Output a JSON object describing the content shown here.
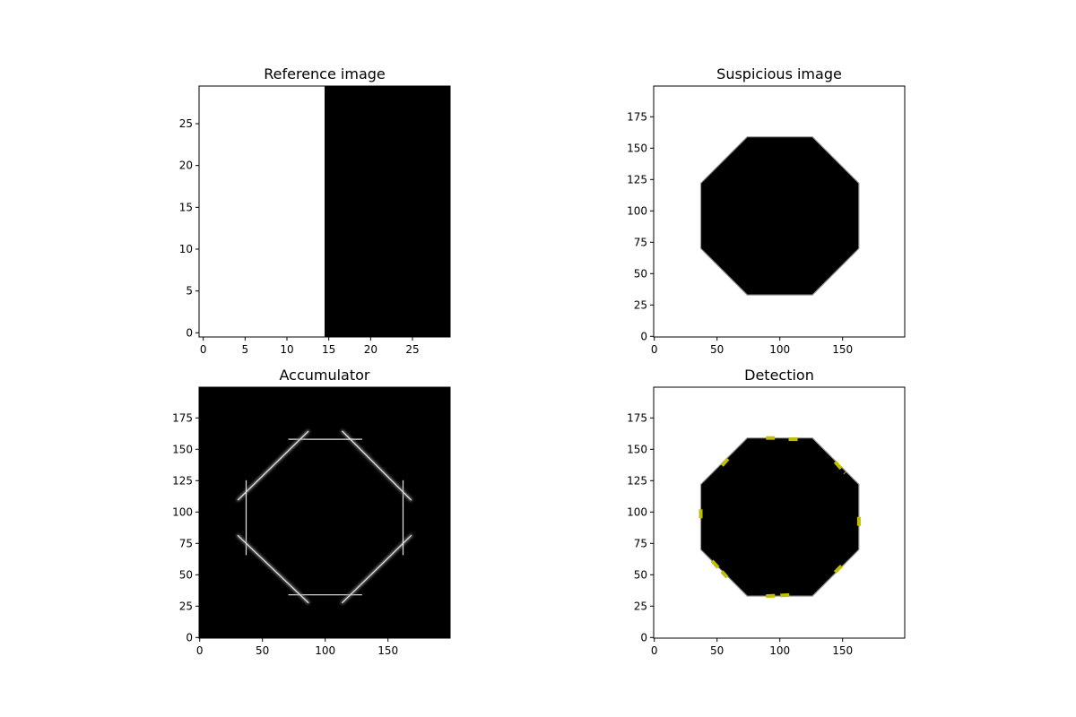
{
  "chart_data": [
    {
      "type": "image",
      "title": "Reference image",
      "xlim": [
        -0.5,
        29.5
      ],
      "ylim": [
        29.5,
        -0.5
      ],
      "xticks": [
        0,
        5,
        10,
        15,
        20,
        25
      ],
      "yticks": [
        0,
        5,
        10,
        15,
        20,
        25
      ],
      "content": "left half white, right half black",
      "split_x": 14.5
    },
    {
      "type": "image",
      "title": "Suspicious image",
      "xlim": [
        -0.5,
        199.5
      ],
      "ylim": [
        199.5,
        -0.5
      ],
      "xticks": [
        0,
        50,
        100,
        150
      ],
      "yticks": [
        0,
        25,
        50,
        75,
        100,
        125,
        150,
        175
      ],
      "content": "black regular octagon on white background",
      "octagon_vertices": [
        [
          74,
          33
        ],
        [
          126,
          33
        ],
        [
          163,
          70
        ],
        [
          163,
          122
        ],
        [
          126,
          159
        ],
        [
          74,
          159
        ],
        [
          37,
          122
        ],
        [
          37,
          70
        ]
      ]
    },
    {
      "type": "heatmap",
      "title": "Accumulator",
      "xlim": [
        -0.5,
        199.5
      ],
      "ylim": [
        199.5,
        -0.5
      ],
      "xticks": [
        0,
        50,
        100,
        150
      ],
      "yticks": [
        0,
        25,
        50,
        75,
        100,
        125,
        150,
        175
      ],
      "content": "dark background with bright octagon outline of accumulated votes",
      "outline_vertices": [
        [
          80,
          34
        ],
        [
          120,
          34
        ],
        [
          162,
          75
        ],
        [
          162,
          116
        ],
        [
          120,
          158
        ],
        [
          80,
          158
        ],
        [
          37,
          116
        ],
        [
          37,
          75
        ]
      ]
    },
    {
      "type": "image",
      "title": "Detection",
      "xlim": [
        -0.5,
        199.5
      ],
      "ylim": [
        199.5,
        -0.5
      ],
      "xticks": [
        0,
        50,
        100,
        150
      ],
      "yticks": [
        0,
        25,
        50,
        75,
        100,
        125,
        150,
        175
      ],
      "content": "suspicious image with detected edge segments overlaid",
      "overlay_color": "#bfbf00",
      "octagon_vertices": [
        [
          74,
          33
        ],
        [
          126,
          33
        ],
        [
          163,
          70
        ],
        [
          163,
          122
        ],
        [
          126,
          159
        ],
        [
          74,
          159
        ],
        [
          37,
          122
        ],
        [
          37,
          70
        ]
      ],
      "detections": [
        {
          "x1": 89,
          "y1": 33,
          "x2": 111,
          "y2": 34
        },
        {
          "x1": 46,
          "y1": 61,
          "x2": 58,
          "y2": 48
        },
        {
          "x1": 144,
          "y1": 52,
          "x2": 151,
          "y2": 59
        },
        {
          "x1": 37,
          "y1": 95,
          "x2": 37,
          "y2": 106
        },
        {
          "x1": 163,
          "y1": 89,
          "x2": 163,
          "y2": 100
        },
        {
          "x1": 54,
          "y1": 137,
          "x2": 60,
          "y2": 144
        },
        {
          "x1": 144,
          "y1": 140,
          "x2": 152,
          "y2": 131
        },
        {
          "x1": 89,
          "y1": 159,
          "x2": 96,
          "y2": 159
        },
        {
          "x1": 107,
          "y1": 158,
          "x2": 118,
          "y2": 158
        }
      ]
    }
  ]
}
